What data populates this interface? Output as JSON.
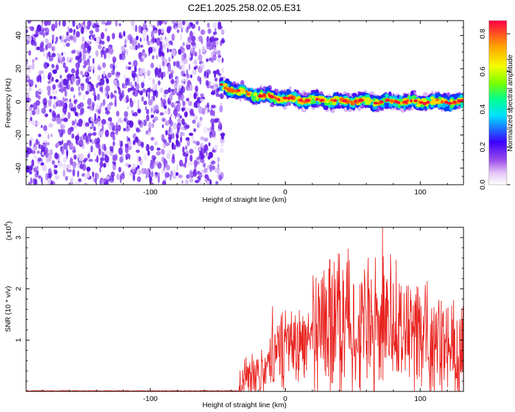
{
  "title": "C2E1.2025.258.02.05.E31",
  "chart_data": [
    {
      "type": "heatmap",
      "name": "spectrogram",
      "xlabel": "Height of straight line (km)",
      "ylabel": "Frequency (Hz)",
      "xlim": [
        -192,
        132
      ],
      "ylim": [
        -50,
        49
      ],
      "x_ticks": [
        -100,
        0,
        100
      ],
      "y_ticks": [
        -40,
        -20,
        0,
        20,
        40
      ],
      "noise_region_x": [
        -192,
        -48
      ],
      "signal_band": {
        "x_start": -48,
        "center_hz_at_start": 10,
        "center_hz_at_end": 0,
        "half_width_hz": 5
      },
      "colorbar": {
        "label": "Normalized spectral amplitude",
        "range": [
          0.0,
          0.87
        ],
        "ticks": [
          0.0,
          0.2,
          0.4,
          0.6,
          0.8
        ],
        "tick_labels": [
          "0.0",
          "0.2",
          "0.4",
          "0.6",
          "0.8"
        ]
      }
    },
    {
      "type": "line",
      "name": "snr",
      "xlabel": "Height of straight line (km)",
      "ylabel": "SNR (10 * v/v)",
      "scale_label": "(x10",
      "scale_exponent": "4",
      "color": "#e8231f",
      "xlim": [
        -192,
        132
      ],
      "ylim": [
        0,
        3.2
      ],
      "x_ticks": [
        -100,
        0,
        100
      ],
      "y_ticks": [
        1,
        2,
        3
      ],
      "segments": [
        {
          "x": [
            -192,
            -35
          ],
          "mean": 0.01,
          "amp": 0.012
        },
        {
          "x": [
            -35,
            -10
          ],
          "mean_start": 0.05,
          "mean_end": 0.55,
          "amp": 0.6
        },
        {
          "x": [
            -10,
            20
          ],
          "mean_start": 0.7,
          "mean_end": 1.1,
          "amp": 1.0
        },
        {
          "x": [
            20,
            80
          ],
          "mean_start": 1.2,
          "mean_end": 1.45,
          "amp": 1.7
        },
        {
          "x": [
            80,
            132
          ],
          "mean_start": 1.3,
          "mean_end": 0.9,
          "amp": 1.4
        }
      ],
      "peak": {
        "x": 72,
        "y": 3.2
      }
    }
  ]
}
